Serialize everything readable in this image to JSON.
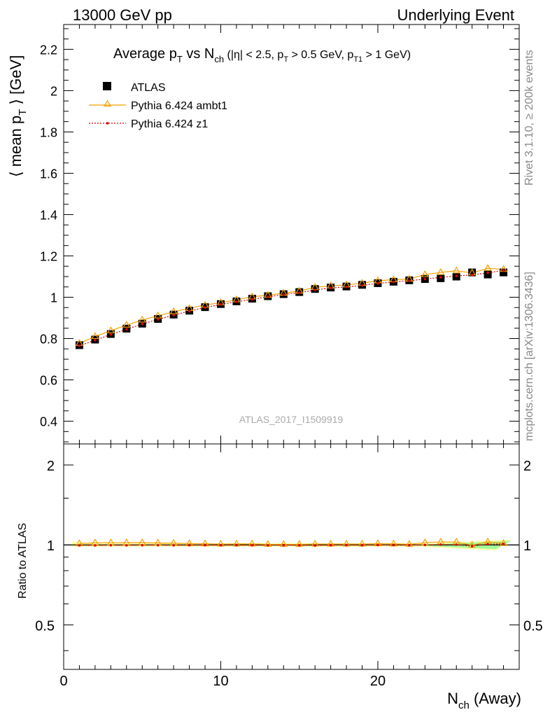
{
  "header": {
    "left": "13000 GeV pp",
    "right": "Underlying Event"
  },
  "side_labels": {
    "rivet": "Rivet 3.1.10, ≥ 200k events",
    "mcplots": "mcplots.cern.ch [arXiv:1306.3436]"
  },
  "chart_data": {
    "type": "scatter",
    "title": {
      "main": "Average p",
      "sub_T": "T",
      "vs": " vs N",
      "sub_ch": "ch",
      "cuts_a": " (|η| < 2.5, p",
      "cuts_b": " > 0.5 GeV, p",
      "sub_T1": "T1",
      "cuts_c": " > 1 GeV)"
    },
    "watermark": "ATLAS_2017_I1509919",
    "ylabel": {
      "open": "⟨ mean p",
      "sub": "T",
      "close": " ⟩ [GeV]"
    },
    "xlabel": {
      "main": "N",
      "sub": "ch",
      "rest": " (Away)"
    },
    "ratio_ylabel": "Ratio to ATLAS",
    "xlim": [
      0,
      29
    ],
    "ylim": [
      0.29,
      2.32
    ],
    "ratio_ylim": [
      0.34,
      2.4
    ],
    "x_ticks": [
      0,
      10,
      20
    ],
    "y_ticks": [
      0.4,
      0.6,
      0.8,
      1,
      1.2,
      1.4,
      1.6,
      1.8,
      2,
      2.2
    ],
    "y_tick_labels": [
      "0.4",
      "0.6",
      "0.8",
      "1",
      "1.2",
      "1.4",
      "1.6",
      "1.8",
      "2",
      "2.2"
    ],
    "ratio_ticks": [
      0.5,
      1,
      2
    ],
    "ratio_tick_labels": [
      "0.5",
      "1",
      "2"
    ],
    "legend": {
      "position": "top-left",
      "entries": [
        {
          "name": "ATLAS",
          "color": "#000000",
          "marker": "square"
        },
        {
          "name": "Pythia 6.424 ambt1",
          "color": "#f5a000",
          "marker": "triangle-open",
          "line": "solid"
        },
        {
          "name": "Pythia 6.424 z1",
          "color": "#e00000",
          "marker": "dot",
          "line": "dotted"
        }
      ]
    },
    "x": [
      1,
      2,
      3,
      4,
      5,
      6,
      7,
      8,
      9,
      10,
      11,
      12,
      13,
      14,
      15,
      16,
      17,
      18,
      19,
      20,
      21,
      22,
      23,
      24,
      25,
      26,
      27,
      28
    ],
    "series": [
      {
        "name": "ATLAS",
        "values": [
          0.768,
          0.795,
          0.822,
          0.848,
          0.872,
          0.895,
          0.916,
          0.935,
          0.952,
          0.967,
          0.98,
          0.993,
          1.005,
          1.015,
          1.025,
          1.04,
          1.047,
          1.052,
          1.06,
          1.068,
          1.075,
          1.082,
          1.088,
          1.092,
          1.1,
          1.12,
          1.11,
          1.12
        ]
      },
      {
        "name": "Pythia 6.424 ambt1",
        "values": [
          0.777,
          0.81,
          0.838,
          0.865,
          0.89,
          0.91,
          0.93,
          0.946,
          0.962,
          0.974,
          0.988,
          1.002,
          1.01,
          1.02,
          1.03,
          1.048,
          1.055,
          1.06,
          1.068,
          1.08,
          1.085,
          1.088,
          1.11,
          1.12,
          1.128,
          1.118,
          1.14,
          1.135
        ]
      },
      {
        "name": "Pythia 6.424 z1",
        "values": [
          0.765,
          0.792,
          0.82,
          0.845,
          0.87,
          0.893,
          0.913,
          0.933,
          0.95,
          0.965,
          0.978,
          0.99,
          1.002,
          1.013,
          1.022,
          1.035,
          1.045,
          1.05,
          1.057,
          1.067,
          1.074,
          1.08,
          1.088,
          1.096,
          1.103,
          1.108,
          1.118,
          1.13
        ]
      }
    ]
  }
}
